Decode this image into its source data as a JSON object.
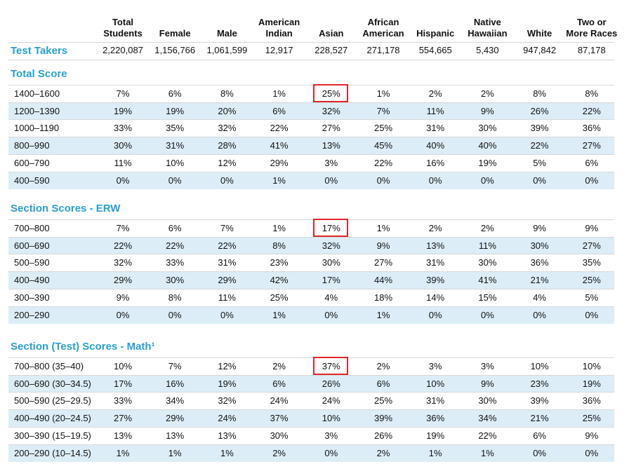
{
  "table": {
    "columns": [
      "Total Students",
      "Female",
      "Male",
      "American Indian",
      "Asian",
      "African American",
      "Hispanic",
      "Native Hawaiian",
      "White",
      "Two or More Races"
    ],
    "test_takers": {
      "label": "Test Takers",
      "values": [
        "2,220,087",
        "1,156,766",
        "1,061,599",
        "12,917",
        "228,527",
        "271,178",
        "554,665",
        "5,430",
        "947,842",
        "87,178"
      ]
    },
    "sections": [
      {
        "title": "Total Score",
        "rows": [
          {
            "label": "1400–1600",
            "cells": [
              "7%",
              "6%",
              "8%",
              "1%",
              "25%",
              "1%",
              "2%",
              "2%",
              "8%",
              "8%"
            ]
          },
          {
            "label": "1200–1390",
            "cells": [
              "19%",
              "19%",
              "20%",
              "6%",
              "32%",
              "7%",
              "11%",
              "9%",
              "26%",
              "22%"
            ]
          },
          {
            "label": "1000–1190",
            "cells": [
              "33%",
              "35%",
              "32%",
              "22%",
              "27%",
              "25%",
              "31%",
              "30%",
              "39%",
              "36%"
            ]
          },
          {
            "label": "800–990",
            "cells": [
              "30%",
              "31%",
              "28%",
              "41%",
              "13%",
              "45%",
              "40%",
              "40%",
              "22%",
              "27%"
            ]
          },
          {
            "label": "600–790",
            "cells": [
              "11%",
              "10%",
              "12%",
              "29%",
              "3%",
              "22%",
              "16%",
              "19%",
              "5%",
              "6%"
            ]
          },
          {
            "label": "400–590",
            "cells": [
              "0%",
              "0%",
              "0%",
              "1%",
              "0%",
              "0%",
              "0%",
              "0%",
              "0%",
              "0%"
            ]
          }
        ]
      },
      {
        "title": "Section Scores - ERW",
        "rows": [
          {
            "label": "700–800",
            "cells": [
              "7%",
              "6%",
              "7%",
              "1%",
              "17%",
              "1%",
              "2%",
              "2%",
              "9%",
              "9%"
            ]
          },
          {
            "label": "600–690",
            "cells": [
              "22%",
              "22%",
              "22%",
              "8%",
              "32%",
              "9%",
              "13%",
              "11%",
              "30%",
              "27%"
            ]
          },
          {
            "label": "500–590",
            "cells": [
              "32%",
              "33%",
              "31%",
              "23%",
              "30%",
              "27%",
              "31%",
              "30%",
              "36%",
              "35%"
            ]
          },
          {
            "label": "400–490",
            "cells": [
              "29%",
              "30%",
              "29%",
              "42%",
              "17%",
              "44%",
              "39%",
              "41%",
              "21%",
              "25%"
            ]
          },
          {
            "label": "300–390",
            "cells": [
              "9%",
              "8%",
              "11%",
              "25%",
              "4%",
              "18%",
              "14%",
              "15%",
              "4%",
              "5%"
            ]
          },
          {
            "label": "200–290",
            "cells": [
              "0%",
              "0%",
              "0%",
              "1%",
              "0%",
              "1%",
              "0%",
              "0%",
              "0%",
              "0%"
            ]
          }
        ]
      },
      {
        "title": "Section (Test) Scores - Math¹",
        "rows": [
          {
            "label": "700–800 (35–40)",
            "cells": [
              "10%",
              "7%",
              "12%",
              "2%",
              "37%",
              "2%",
              "3%",
              "3%",
              "10%",
              "10%"
            ]
          },
          {
            "label": "600–690 (30–34.5)",
            "cells": [
              "17%",
              "16%",
              "19%",
              "6%",
              "26%",
              "6%",
              "10%",
              "9%",
              "23%",
              "19%"
            ]
          },
          {
            "label": "500–590 (25–29.5)",
            "cells": [
              "33%",
              "34%",
              "32%",
              "24%",
              "24%",
              "25%",
              "31%",
              "30%",
              "39%",
              "36%"
            ]
          },
          {
            "label": "400–490 (20–24.5)",
            "cells": [
              "27%",
              "29%",
              "24%",
              "37%",
              "10%",
              "39%",
              "36%",
              "34%",
              "21%",
              "25%"
            ]
          },
          {
            "label": "300–390 (15–19.5)",
            "cells": [
              "13%",
              "13%",
              "13%",
              "30%",
              "3%",
              "26%",
              "19%",
              "22%",
              "6%",
              "9%"
            ]
          },
          {
            "label": "200–290 (10–14.5)",
            "cells": [
              "1%",
              "1%",
              "1%",
              "2%",
              "0%",
              "2%",
              "1%",
              "1%",
              "0%",
              "0%"
            ]
          }
        ]
      }
    ]
  }
}
